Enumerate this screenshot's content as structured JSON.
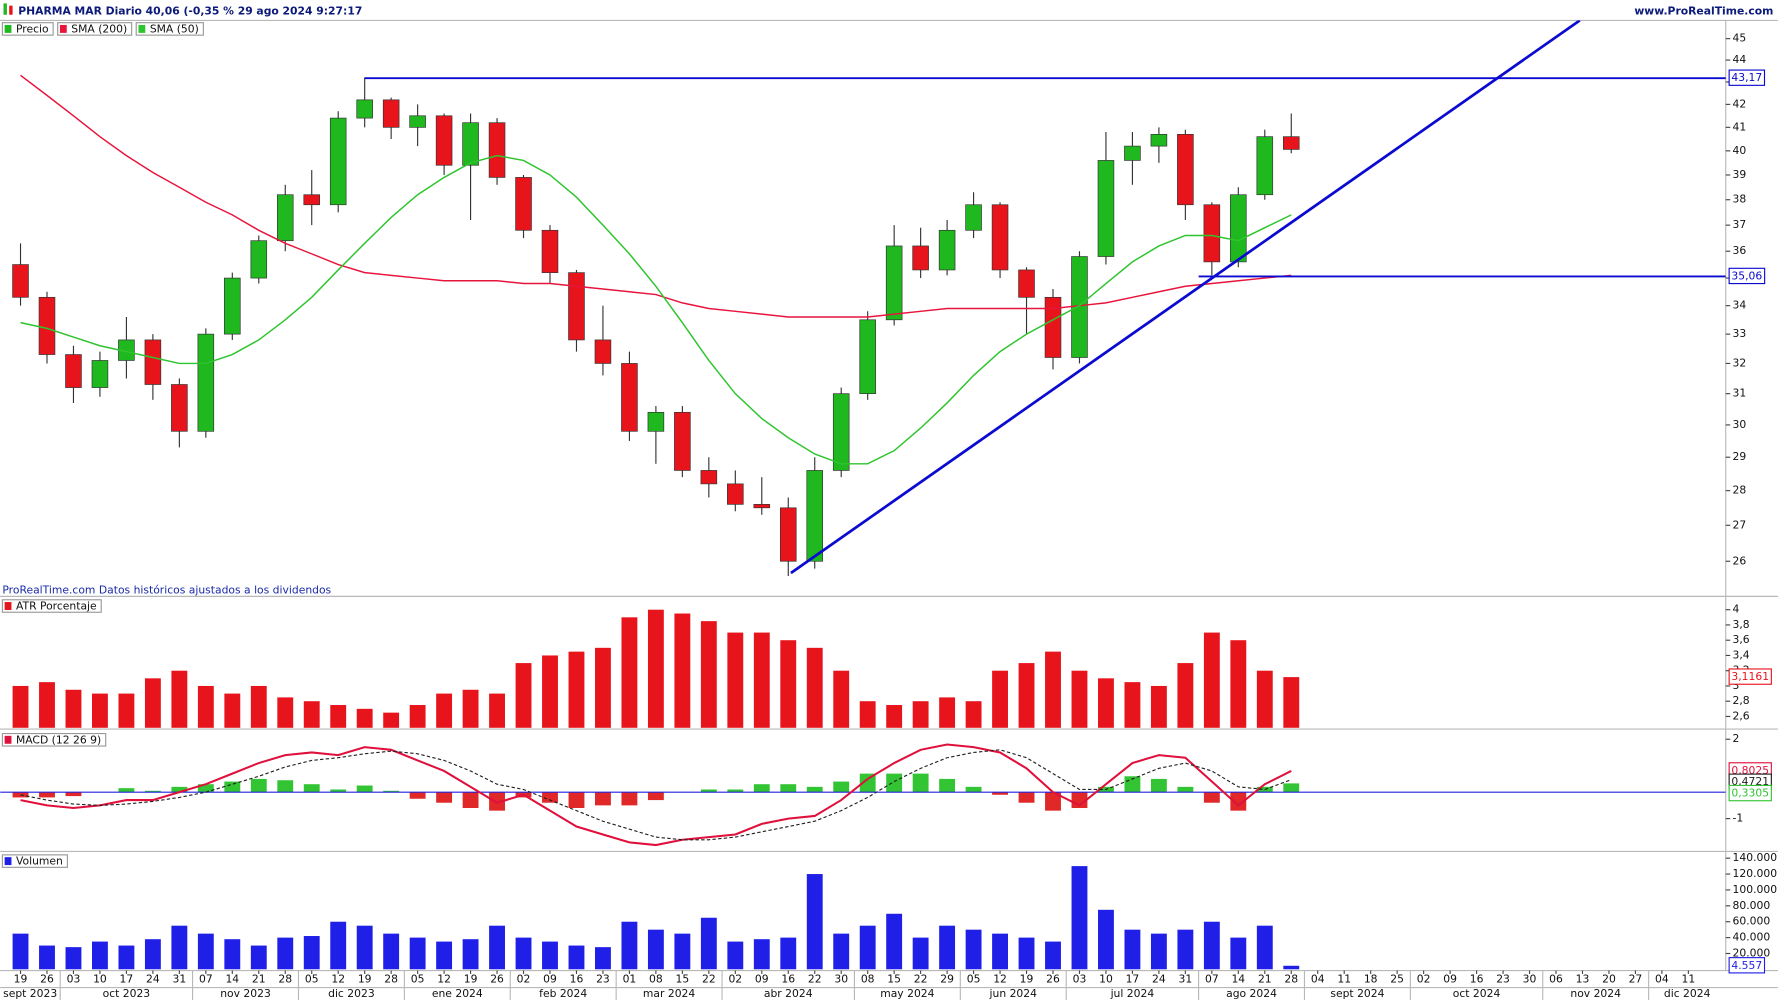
{
  "chart_data": [
    {
      "type": "candlestick",
      "title": "PHARMA MAR Diario 40,06 (-0,35 % 29 ago 2024 9:27:17",
      "source": "www.ProRealTime.com",
      "note": "ProRealTime.com Datos históricos ajustados a los dividendos",
      "log_scale": true,
      "ylim": [
        25.48,
        45.87
      ],
      "yticks": [
        26,
        27,
        28,
        29,
        30,
        31,
        32,
        33,
        34,
        35,
        36,
        37,
        38,
        39,
        40,
        41,
        42,
        43,
        44,
        45
      ],
      "candles": {
        "name": "Precio",
        "color": "#1fb81f",
        "down_color": "#e8141c",
        "open": [
          35.5,
          34.3,
          32.3,
          31.2,
          32.1,
          32.8,
          31.3,
          29.8,
          33.0,
          35.0,
          36.4,
          38.2,
          37.8,
          41.4,
          42.2,
          41.0,
          41.5,
          39.4,
          41.2,
          38.9,
          36.8,
          35.2,
          32.8,
          32.0,
          29.8,
          30.4,
          28.6,
          28.2,
          27.6,
          27.5,
          26.0,
          28.6,
          31.0,
          33.5,
          36.2,
          35.3,
          36.8,
          37.8,
          35.3,
          34.3,
          32.2,
          35.8,
          39.6,
          40.2,
          40.7,
          37.8,
          35.6,
          38.2,
          40.6
        ],
        "high": [
          36.3,
          34.5,
          32.6,
          32.4,
          33.6,
          33.0,
          31.5,
          33.2,
          35.2,
          36.6,
          38.6,
          39.2,
          41.7,
          43.2,
          42.3,
          42.0,
          41.6,
          41.6,
          41.4,
          39.0,
          37.0,
          35.3,
          34.0,
          32.4,
          30.6,
          30.6,
          29.0,
          28.6,
          28.4,
          27.8,
          29.0,
          31.2,
          33.8,
          37.0,
          36.9,
          37.2,
          38.3,
          37.9,
          35.4,
          34.6,
          36.0,
          40.8,
          40.8,
          41.0,
          40.9,
          37.9,
          38.5,
          40.9,
          41.6
        ],
        "low": [
          34.0,
          32.0,
          30.7,
          30.9,
          31.5,
          30.8,
          29.3,
          29.6,
          32.8,
          34.8,
          36.0,
          37.0,
          37.5,
          41.0,
          40.5,
          40.2,
          39.0,
          37.2,
          38.6,
          36.5,
          34.8,
          32.4,
          31.6,
          29.5,
          28.8,
          28.4,
          27.8,
          27.4,
          27.3,
          25.6,
          25.8,
          28.4,
          30.8,
          33.3,
          35.0,
          35.1,
          36.5,
          35.0,
          33.0,
          31.8,
          32.0,
          35.5,
          38.6,
          39.5,
          37.2,
          35.1,
          35.4,
          38.0,
          39.9
        ],
        "close": [
          34.3,
          32.3,
          31.2,
          32.1,
          32.8,
          31.3,
          29.8,
          33.0,
          35.0,
          36.4,
          38.2,
          37.8,
          41.4,
          42.2,
          41.0,
          41.5,
          39.4,
          41.2,
          38.9,
          36.8,
          35.2,
          32.8,
          32.0,
          29.8,
          30.4,
          28.6,
          28.2,
          27.6,
          27.5,
          26.0,
          28.6,
          31.0,
          33.5,
          36.2,
          35.3,
          36.8,
          37.8,
          35.3,
          34.3,
          32.2,
          35.8,
          39.6,
          40.2,
          40.7,
          37.8,
          35.6,
          38.2,
          40.6,
          40.06
        ]
      },
      "series": [
        {
          "name": "SMA (200)",
          "color": "#e8143c",
          "values": [
            43.3,
            42.4,
            41.5,
            40.6,
            39.8,
            39.1,
            38.5,
            37.9,
            37.4,
            36.8,
            36.3,
            35.9,
            35.5,
            35.2,
            35.1,
            35.0,
            34.9,
            34.9,
            34.9,
            34.8,
            34.8,
            34.7,
            34.6,
            34.5,
            34.4,
            34.1,
            33.9,
            33.8,
            33.7,
            33.6,
            33.6,
            33.6,
            33.6,
            33.7,
            33.8,
            33.9,
            33.9,
            33.9,
            33.9,
            33.9,
            34.0,
            34.1,
            34.3,
            34.5,
            34.7,
            34.8,
            34.9,
            35.0,
            35.1
          ]
        },
        {
          "name": "SMA (50)",
          "color": "#2ec42e",
          "values": [
            33.4,
            33.2,
            32.9,
            32.6,
            32.4,
            32.2,
            32.0,
            32.0,
            32.3,
            32.8,
            33.5,
            34.3,
            35.3,
            36.3,
            37.3,
            38.2,
            38.9,
            39.5,
            39.8,
            39.6,
            39.0,
            38.1,
            37.0,
            35.9,
            34.7,
            33.4,
            32.1,
            31.0,
            30.2,
            29.6,
            29.1,
            28.8,
            28.8,
            29.2,
            29.9,
            30.7,
            31.6,
            32.4,
            33.0,
            33.5,
            34.0,
            34.8,
            35.6,
            36.2,
            36.6,
            36.6,
            36.4,
            36.9,
            37.4
          ]
        }
      ],
      "hlines": [
        {
          "value": 43.17,
          "label": "43,17",
          "x_start": 13
        },
        {
          "value": 35.06,
          "label": "35,06",
          "x_start": 44.5
        }
      ],
      "line_color": "#0a0ad0",
      "trendline": {
        "x": [
          29.1,
          58.9
        ],
        "y": [
          25.68,
          45.87
        ]
      }
    },
    {
      "type": "bar",
      "ylim": [
        2.45,
        4.16
      ],
      "yticks": [
        {
          "value": 4,
          "label": "4"
        },
        {
          "value": 3.8,
          "label": "3,8"
        },
        {
          "value": 3.6,
          "label": "3,6"
        },
        {
          "value": 3.4,
          "label": "3,4"
        },
        {
          "value": 3.2,
          "label": "3,2"
        },
        {
          "value": 3,
          "label": "3"
        },
        {
          "value": 2.8,
          "label": "2,8"
        },
        {
          "value": 2.6,
          "label": "2,6"
        }
      ],
      "series": [
        {
          "name": "ATR Porcentaje",
          "color": "#e8141c",
          "last_label": "3,1161",
          "values": [
            3.0,
            3.05,
            2.95,
            2.9,
            2.9,
            3.1,
            3.2,
            3.0,
            2.9,
            3.0,
            2.85,
            2.8,
            2.75,
            2.7,
            2.65,
            2.75,
            2.9,
            2.95,
            2.9,
            3.3,
            3.4,
            3.45,
            3.5,
            3.9,
            4.0,
            3.95,
            3.85,
            3.7,
            3.7,
            3.6,
            3.5,
            3.2,
            2.8,
            2.75,
            2.8,
            2.85,
            2.8,
            3.2,
            3.3,
            3.45,
            3.2,
            3.1,
            3.05,
            3.0,
            3.3,
            3.7,
            3.6,
            3.2,
            3.1161
          ]
        }
      ]
    },
    {
      "type": "macd",
      "title": "MACD (12 26 9)",
      "ylim": [
        -2.2,
        2.3
      ],
      "yticks": [
        2,
        -1
      ],
      "baseline": 0,
      "baseline_color": "#2222dd",
      "series": [
        {
          "color": "#e0103c",
          "last_label": "0,8025",
          "values": [
            -0.3,
            -0.5,
            -0.6,
            -0.5,
            -0.3,
            -0.3,
            0.0,
            0.3,
            0.7,
            1.1,
            1.4,
            1.5,
            1.4,
            1.7,
            1.6,
            1.2,
            0.8,
            0.2,
            -0.4,
            -0.1,
            -0.7,
            -1.3,
            -1.6,
            -1.9,
            -2.0,
            -1.8,
            -1.7,
            -1.6,
            -1.2,
            -1.0,
            -0.9,
            -0.3,
            0.5,
            1.1,
            1.6,
            1.8,
            1.7,
            1.5,
            0.9,
            0.0,
            -0.5,
            0.3,
            1.1,
            1.4,
            1.3,
            0.4,
            -0.5,
            0.3,
            0.8025
          ]
        },
        {
          "color": "#222222",
          "dashed": true,
          "last_label": "0,4721",
          "values": [
            -0.1,
            -0.3,
            -0.45,
            -0.5,
            -0.45,
            -0.35,
            -0.2,
            0.0,
            0.3,
            0.6,
            0.95,
            1.2,
            1.3,
            1.45,
            1.55,
            1.45,
            1.2,
            0.8,
            0.3,
            0.1,
            -0.3,
            -0.7,
            -1.1,
            -1.4,
            -1.7,
            -1.8,
            -1.8,
            -1.7,
            -1.5,
            -1.3,
            -1.1,
            -0.7,
            -0.2,
            0.4,
            0.9,
            1.3,
            1.5,
            1.6,
            1.3,
            0.7,
            0.1,
            0.1,
            0.5,
            0.9,
            1.1,
            0.8,
            0.2,
            0.1,
            0.4721
          ]
        }
      ],
      "histogram": {
        "color": "#33c433",
        "down_color": "#e02828",
        "last_label": "0,3305",
        "values": [
          -0.2,
          -0.2,
          -0.15,
          0.0,
          0.15,
          0.05,
          0.2,
          0.3,
          0.4,
          0.5,
          0.45,
          0.3,
          0.1,
          0.25,
          0.05,
          -0.25,
          -0.4,
          -0.6,
          -0.7,
          -0.2,
          -0.4,
          -0.6,
          -0.5,
          -0.5,
          -0.3,
          0.0,
          0.1,
          0.1,
          0.3,
          0.3,
          0.2,
          0.4,
          0.7,
          0.7,
          0.7,
          0.5,
          0.2,
          -0.1,
          -0.4,
          -0.7,
          -0.6,
          0.2,
          0.6,
          0.5,
          0.2,
          -0.4,
          -0.7,
          0.2,
          0.3305
        ]
      }
    },
    {
      "type": "bar",
      "ylim": [
        0,
        147000
      ],
      "yticks": [
        {
          "value": 140000,
          "label": "140.000"
        },
        {
          "value": 120000,
          "label": "120.000"
        },
        {
          "value": 100000,
          "label": "100.000"
        },
        {
          "value": 80000,
          "label": "80.000"
        },
        {
          "value": 60000,
          "label": "60.000"
        },
        {
          "value": 40000,
          "label": "40.000"
        },
        {
          "value": 20000,
          "label": "20.000"
        }
      ],
      "series": [
        {
          "name": "Volumen",
          "color": "#1f1fe8",
          "last_label": "4.557",
          "values": [
            45000,
            30000,
            28000,
            35000,
            30000,
            38000,
            55000,
            45000,
            38000,
            30000,
            40000,
            42000,
            60000,
            55000,
            45000,
            40000,
            35000,
            38000,
            55000,
            40000,
            35000,
            30000,
            28000,
            60000,
            50000,
            45000,
            65000,
            35000,
            38000,
            40000,
            120000,
            45000,
            55000,
            70000,
            40000,
            55000,
            50000,
            45000,
            40000,
            35000,
            130000,
            75000,
            50000,
            45000,
            50000,
            60000,
            40000,
            55000,
            4557
          ]
        }
      ],
      "x_day_labels": [
        "19",
        "26",
        "03",
        "10",
        "17",
        "24",
        "31",
        "07",
        "14",
        "21",
        "28",
        "05",
        "12",
        "19",
        "28",
        "05",
        "12",
        "19",
        "26",
        "02",
        "09",
        "16",
        "23",
        "01",
        "08",
        "15",
        "22",
        "02",
        "09",
        "16",
        "22",
        "30",
        "08",
        "15",
        "22",
        "29",
        "05",
        "12",
        "19",
        "26",
        "03",
        "10",
        "17",
        "24",
        "31",
        "07",
        "14",
        "21",
        "28",
        "04",
        "11",
        "18",
        "25",
        "02",
        "09",
        "16",
        "23",
        "30",
        "06",
        "13",
        "20",
        "27",
        "04",
        "11"
      ],
      "x_month_labels": [
        "sept 2023",
        "oct 2023",
        "nov 2023",
        "dic 2023",
        "ene 2024",
        "feb 2024",
        "mar 2024",
        "abr 2024",
        "may 2024",
        "jun 2024",
        "jul 2024",
        "ago 2024",
        "sept 2024",
        "oct 2024",
        "nov 2024",
        "dic 2024"
      ]
    }
  ]
}
